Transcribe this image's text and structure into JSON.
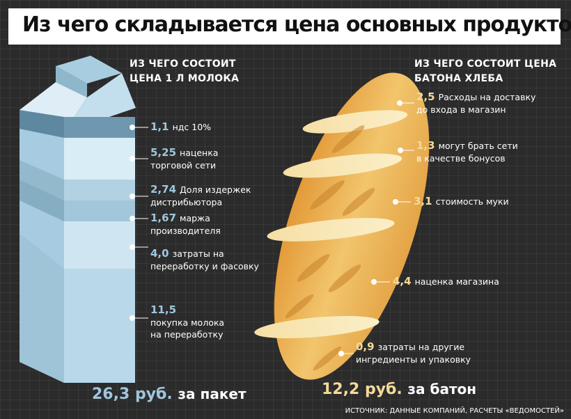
{
  "title": "Из чего складывается цена основных продуктов",
  "milk": {
    "heading_line1": "ИЗ ЧЕГО СОСТОИТ",
    "heading_line2": "ЦЕНА 1 Л МОЛОКА",
    "items": [
      {
        "value": "1,1",
        "line1": "ндс 10%",
        "line2": ""
      },
      {
        "value": "5,25",
        "line1": "наценка",
        "line2": "торговой сети"
      },
      {
        "value": "2,74",
        "line1": "Доля издержек",
        "line2": "дистрибьютора"
      },
      {
        "value": "1,67",
        "line1": "маржа",
        "line2": "производителя"
      },
      {
        "value": "4,0",
        "line1": "затраты на",
        "line2": "переработку и фасовку"
      },
      {
        "value": "11,5",
        "line1": "",
        "line2": "покупка молока",
        "line3": "на переработку"
      }
    ],
    "total_value": "26,3 руб.",
    "total_unit": "за пакет"
  },
  "bread": {
    "heading_line1": "ИЗ ЧЕГО СОСТОИТ ЦЕНА",
    "heading_line2": "БАТОНА ХЛЕБА",
    "items": [
      {
        "value": "2,5",
        "line1": "Расходы на доставку",
        "line2": "до входа в магазин"
      },
      {
        "value": "1,3",
        "line1": "могут брать сети",
        "line2": "в качестве бонусов"
      },
      {
        "value": "3,1",
        "line1": "стоимость муки",
        "line2": ""
      },
      {
        "value": "4,4",
        "line1": "наценка магазина",
        "line2": ""
      },
      {
        "value": "0,9",
        "line1": "затраты на другие",
        "line2": "ингредиенты и упаковку"
      }
    ],
    "total_value": "12,2 руб.",
    "total_unit": "за батон"
  },
  "source": "ИСТОЧНИК: ДАННЫЕ КОМПАНИЙ, РАСЧЕТЫ «ВЕДОМОСТЕЙ»",
  "colors": {
    "background": "#2b2b2b",
    "milk_accent": "#9fc7dd",
    "bread_accent": "#f5d99a",
    "carton_front": "#bcd9e8",
    "bread_crust": "#e7a94b"
  }
}
